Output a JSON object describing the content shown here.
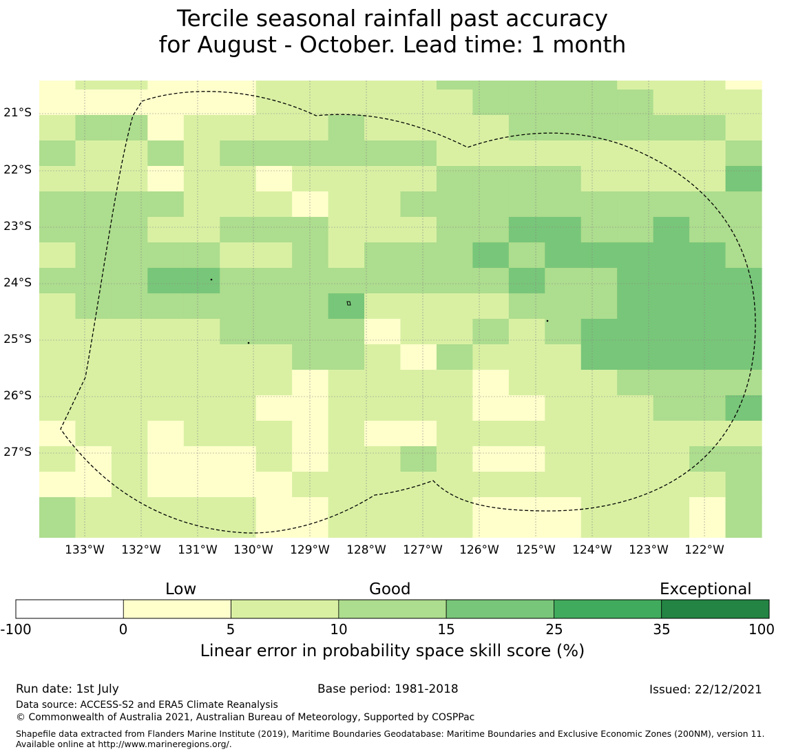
{
  "title": {
    "line1": "Tercile seasonal rainfall past accuracy",
    "line2": "for August - October. Lead time: 1 month"
  },
  "map": {
    "lat_labels": [
      "21°S",
      "22°S",
      "23°S",
      "24°S",
      "25°S",
      "26°S",
      "27°S"
    ],
    "lon_labels": [
      "133°W",
      "132°W",
      "131°W",
      "130°W",
      "129°W",
      "128°W",
      "127°W",
      "126°W",
      "125°W",
      "124°W",
      "123°W",
      "122°W"
    ],
    "boundary_style": "dashed black line (maritime boundary / EEZ)",
    "gridlines": true
  },
  "colorbar": {
    "categories": [
      "Low",
      "Good",
      "Exceptional"
    ],
    "ticks": [
      "-100",
      "0",
      "5",
      "10",
      "15",
      "25",
      "35",
      "100"
    ],
    "colors": [
      "#ffffff",
      "#ffffcc",
      "#d9f0a3",
      "#addd8e",
      "#78c679",
      "#41ab5d",
      "#238443"
    ],
    "label": "Linear error in probability space skill score (%)"
  },
  "cell_colors": {
    "0": "#ffffcc",
    "1": "#d9f0a3",
    "2": "#addd8e",
    "3": "#78c679"
  },
  "grid_rows": [
    "01100011111222221110",
    "00000011111122222111",
    "12201111211112222221",
    "21121222222111111112",
    "11101101111222211113",
    "22221110112222222222",
    "22211222111223322322",
    "12222112122232333332",
    "22233222222223223333",
    "12222222311112223333",
    "11111222201121233333",
    "11111112210211133333",
    "11111110111101112222",
    "11111100111100111223",
    "01101110100111111111",
    "10100010112100111122",
    "00100001111111111112",
    "21111100111100011102"
  ],
  "footer": {
    "run_date": "Run date: 1st July",
    "base_period": "Base period: 1981-2018",
    "issued": "Issued: 22/12/2021",
    "data_source": "Data source: ACCESS-S2 and ERA5 Climate Reanalysis",
    "copyright": "© Commonwealth of Australia 2021, Australian Bureau of Meteorology, Supported by COSPPac",
    "shapefile": "Shapefile data extracted from Flanders Marine Institute (2019), Maritime Boundaries Geodatabase: Maritime Boundaries and Exclusive Economic Zones (200NM), version 11. Available online at http://www.marineregions.org/."
  }
}
